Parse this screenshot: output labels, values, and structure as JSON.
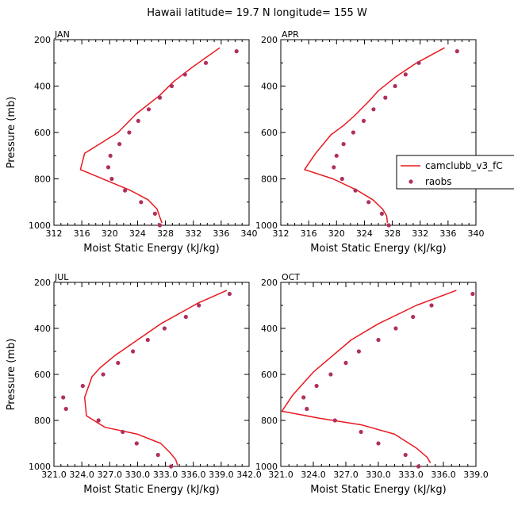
{
  "title": "Hawaii  latitude= 19.7 N longitude= 155 W",
  "legend": {
    "placement": "right of APR panel",
    "entries": [
      {
        "label": "camclubb_v3_fC",
        "style": "line",
        "color": "#e8191f"
      },
      {
        "label": "raobs",
        "style": "marker",
        "color": "#b03060"
      }
    ]
  },
  "chart_data": [
    {
      "type": "line",
      "panel_title": "JAN",
      "xlabel": "Moist Static Energy (kJ/kg)",
      "ylabel": "Pressure (mb)",
      "xlim": [
        312,
        340
      ],
      "xticks": [
        312,
        316,
        320,
        324,
        328,
        332,
        336,
        340
      ],
      "xtick_labels": [
        "312",
        "316",
        "320",
        "324",
        "328",
        "332",
        "336",
        "340"
      ],
      "ylim": [
        1000,
        200
      ],
      "yticks": [
        200,
        400,
        600,
        800,
        1000
      ],
      "ytick_labels": [
        "200",
        "400",
        "600",
        "800",
        "1000"
      ],
      "series": [
        {
          "name": "camclubb_v3_fC",
          "kind": "line",
          "points": [
            [
              335.8,
              235
            ],
            [
              331.8,
              320
            ],
            [
              329.2,
              380
            ],
            [
              327.2,
              440
            ],
            [
              323.8,
              520
            ],
            [
              321.2,
              600
            ],
            [
              316.4,
              690
            ],
            [
              315.8,
              760
            ],
            [
              319.8,
              810
            ],
            [
              323.0,
              850
            ],
            [
              325.5,
              890
            ],
            [
              326.8,
              930
            ],
            [
              327.2,
              965
            ],
            [
              327.5,
              990
            ]
          ]
        },
        {
          "name": "raobs",
          "kind": "markers",
          "points": [
            [
              338.2,
              250
            ],
            [
              333.8,
              300
            ],
            [
              330.8,
              350
            ],
            [
              328.9,
              400
            ],
            [
              327.2,
              450
            ],
            [
              325.6,
              500
            ],
            [
              324.1,
              550
            ],
            [
              322.8,
              600
            ],
            [
              321.4,
              650
            ],
            [
              320.1,
              700
            ],
            [
              319.8,
              750
            ],
            [
              320.3,
              800
            ],
            [
              322.2,
              850
            ],
            [
              324.5,
              900
            ],
            [
              326.5,
              950
            ],
            [
              327.2,
              1000
            ]
          ]
        }
      ]
    },
    {
      "type": "line",
      "panel_title": "APR",
      "xlabel": "Moist Static Energy (kJ/kg)",
      "ylabel": "",
      "xlim": [
        312,
        340
      ],
      "xticks": [
        312,
        316,
        320,
        324,
        328,
        332,
        336,
        340
      ],
      "xtick_labels": [
        "312",
        "316",
        "320",
        "324",
        "328",
        "332",
        "336",
        "340"
      ],
      "ylim": [
        1000,
        200
      ],
      "yticks": [
        200,
        400,
        600,
        800,
        1000
      ],
      "ytick_labels": [
        "200",
        "400",
        "600",
        "800",
        "1000"
      ],
      "series": [
        {
          "name": "camclubb_v3_fC",
          "kind": "line",
          "points": [
            [
              335.5,
              235
            ],
            [
              331.5,
              300
            ],
            [
              328.5,
              360
            ],
            [
              326.0,
              420
            ],
            [
              324.5,
              470
            ],
            [
              322.5,
              530
            ],
            [
              321.0,
              570
            ],
            [
              319.2,
              610
            ],
            [
              317.0,
              690
            ],
            [
              315.4,
              760
            ],
            [
              319.5,
              800
            ],
            [
              323.0,
              850
            ],
            [
              325.2,
              890
            ],
            [
              326.6,
              930
            ],
            [
              327.2,
              960
            ],
            [
              327.3,
              990
            ]
          ]
        },
        {
          "name": "raobs",
          "kind": "markers",
          "points": [
            [
              337.3,
              250
            ],
            [
              331.8,
              300
            ],
            [
              329.9,
              350
            ],
            [
              328.4,
              400
            ],
            [
              327.0,
              450
            ],
            [
              325.3,
              500
            ],
            [
              323.9,
              550
            ],
            [
              322.4,
              600
            ],
            [
              321.0,
              650
            ],
            [
              320.0,
              700
            ],
            [
              319.6,
              750
            ],
            [
              320.8,
              800
            ],
            [
              322.7,
              850
            ],
            [
              324.6,
              900
            ],
            [
              326.5,
              950
            ],
            [
              327.5,
              1000
            ]
          ]
        }
      ]
    },
    {
      "type": "line",
      "panel_title": "JUL",
      "xlabel": "Moist Static Energy (kJ/kg)",
      "ylabel": "Pressure (mb)",
      "xlim": [
        321,
        342
      ],
      "xticks": [
        321,
        324,
        327,
        330,
        333,
        336,
        339,
        342
      ],
      "xtick_labels": [
        "321.0",
        "324.0",
        "327.0",
        "330.0",
        "333.0",
        "336.0",
        "339.0",
        "342.0"
      ],
      "ylim": [
        1000,
        200
      ],
      "yticks": [
        200,
        400,
        600,
        800,
        1000
      ],
      "ytick_labels": [
        "200",
        "400",
        "600",
        "800",
        "1000"
      ],
      "series": [
        {
          "name": "camclubb_v3_fC",
          "kind": "line",
          "points": [
            [
              339.6,
              235
            ],
            [
              336.5,
              290
            ],
            [
              332.5,
              380
            ],
            [
              330.0,
              450
            ],
            [
              327.5,
              520
            ],
            [
              326.0,
              570
            ],
            [
              325.1,
              610
            ],
            [
              324.3,
              700
            ],
            [
              324.5,
              780
            ],
            [
              326.5,
              830
            ],
            [
              330.0,
              860
            ],
            [
              332.5,
              900
            ],
            [
              333.5,
              940
            ],
            [
              334.1,
              970
            ],
            [
              334.3,
              995
            ]
          ]
        },
        {
          "name": "raobs",
          "kind": "markers",
          "points": [
            [
              339.9,
              250
            ],
            [
              336.6,
              300
            ],
            [
              335.2,
              350
            ],
            [
              332.9,
              400
            ],
            [
              331.1,
              450
            ],
            [
              329.5,
              500
            ],
            [
              327.9,
              550
            ],
            [
              326.3,
              600
            ],
            [
              324.1,
              650
            ],
            [
              322.0,
              700
            ],
            [
              322.3,
              750
            ],
            [
              325.8,
              800
            ],
            [
              328.4,
              850
            ],
            [
              329.9,
              900
            ],
            [
              332.2,
              950
            ],
            [
              333.6,
              1000
            ]
          ]
        }
      ]
    },
    {
      "type": "line",
      "panel_title": "OCT",
      "xlabel": "Moist Static Energy (kJ/kg)",
      "ylabel": "",
      "xlim": [
        321,
        339
      ],
      "xticks": [
        321,
        324,
        327,
        330,
        333,
        336,
        339
      ],
      "xtick_labels": [
        "321.0",
        "324.0",
        "327.0",
        "330.0",
        "333.0",
        "336.0",
        "339.0"
      ],
      "ylim": [
        1000,
        200
      ],
      "yticks": [
        200,
        400,
        600,
        800,
        1000
      ],
      "ytick_labels": [
        "200",
        "400",
        "600",
        "800",
        "1000"
      ],
      "series": [
        {
          "name": "camclubb_v3_fC",
          "kind": "line",
          "points": [
            [
              337.2,
              235
            ],
            [
              333.5,
              300
            ],
            [
              330.0,
              380
            ],
            [
              327.5,
              450
            ],
            [
              325.5,
              530
            ],
            [
              324.0,
              590
            ],
            [
              322.1,
              690
            ],
            [
              321.1,
              760
            ],
            [
              324.5,
              790
            ],
            [
              328.5,
              820
            ],
            [
              331.5,
              860
            ],
            [
              333.5,
              920
            ],
            [
              334.5,
              960
            ],
            [
              334.8,
              985
            ]
          ]
        },
        {
          "name": "raobs",
          "kind": "markers",
          "points": [
            [
              338.7,
              250
            ],
            [
              334.9,
              300
            ],
            [
              333.2,
              350
            ],
            [
              331.6,
              400
            ],
            [
              330.0,
              450
            ],
            [
              328.2,
              500
            ],
            [
              327.0,
              550
            ],
            [
              325.6,
              600
            ],
            [
              324.3,
              650
            ],
            [
              323.1,
              700
            ],
            [
              323.4,
              750
            ],
            [
              326.0,
              800
            ],
            [
              328.4,
              850
            ],
            [
              330.0,
              900
            ],
            [
              332.5,
              950
            ],
            [
              333.7,
              1000
            ]
          ]
        }
      ]
    }
  ]
}
